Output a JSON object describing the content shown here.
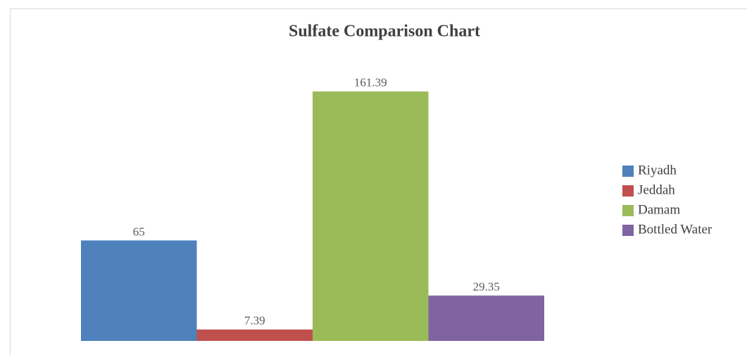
{
  "chart_data": {
    "type": "bar",
    "title": "Sulfate Comparison Chart",
    "categories": [
      null
    ],
    "series": [
      {
        "name": "Riyadh",
        "color": "#4f81bd",
        "values": [
          65
        ]
      },
      {
        "name": "Jeddah",
        "color": "#c0504d",
        "values": [
          7.39
        ]
      },
      {
        "name": "Damam",
        "color": "#9bbb59",
        "values": [
          161.39
        ]
      },
      {
        "name": "Bottled Water",
        "color": "#8064a2",
        "values": [
          29.35
        ]
      }
    ],
    "ylim": [
      0,
      180
    ],
    "legend": "right"
  }
}
